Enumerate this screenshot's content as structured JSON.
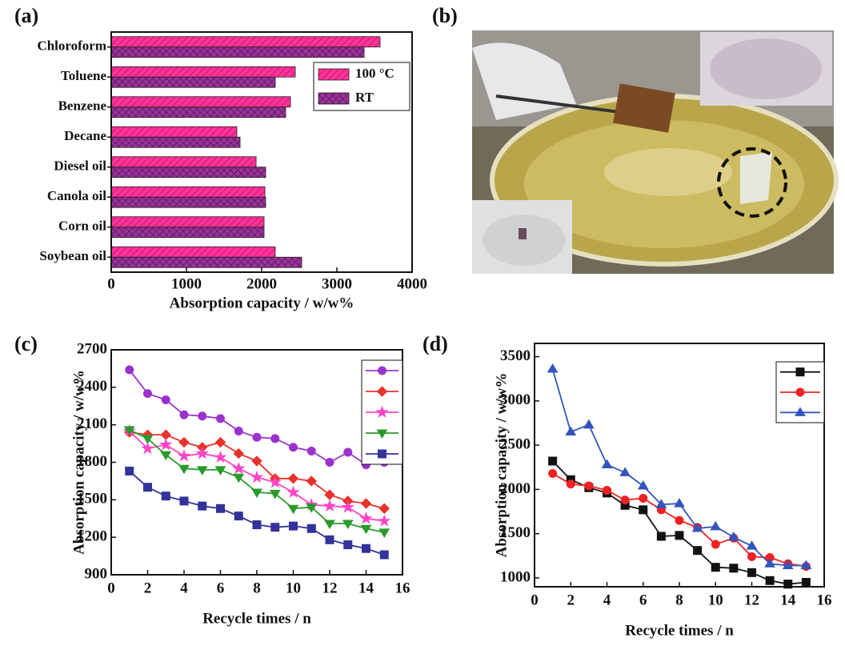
{
  "chart_data": [
    {
      "type": "barh",
      "panel_label": "(a)",
      "categories": [
        "Chloroform",
        "Toluene",
        "Benzene",
        "Decane",
        "Diesel oil",
        "Canola oil",
        "Corn oil",
        "Soybean oil"
      ],
      "series": [
        {
          "name": "100 °C",
          "color": "#ff3399",
          "values": [
            3574,
            2447,
            2383,
            1670,
            1926,
            2043,
            2032,
            2181
          ]
        },
        {
          "name": "RT",
          "color": "#993399",
          "values": [
            3362,
            2181,
            2319,
            1713,
            2053,
            2053,
            2032,
            2532
          ]
        }
      ],
      "xlabel": "Absorption capacity / w/w%",
      "xlim": [
        0,
        4000
      ],
      "xticks": [
        0,
        1000,
        2000,
        3000,
        4000
      ]
    },
    {
      "type": "line",
      "panel_label": "(c)",
      "x": [
        1,
        2,
        3,
        4,
        5,
        6,
        7,
        8,
        9,
        10,
        11,
        12,
        13,
        14,
        15
      ],
      "series": [
        {
          "color": "#9933cc",
          "marker": "circle",
          "values": [
            2540,
            2350,
            2300,
            2180,
            2170,
            2150,
            2050,
            2000,
            1990,
            1920,
            1890,
            1800,
            1880,
            1780,
            1800
          ]
        },
        {
          "color": "#e8322c",
          "marker": "diamond",
          "values": [
            2040,
            2020,
            2020,
            1960,
            1920,
            1960,
            1870,
            1810,
            1670,
            1670,
            1650,
            1540,
            1490,
            1470,
            1430
          ]
        },
        {
          "color": "#ff44c8",
          "marker": "star",
          "values": [
            2050,
            1910,
            1940,
            1850,
            1870,
            1840,
            1750,
            1680,
            1640,
            1560,
            1460,
            1450,
            1440,
            1350,
            1330
          ]
        },
        {
          "color": "#2a9a2a",
          "marker": "tri-down",
          "values": [
            2060,
            1990,
            1860,
            1750,
            1740,
            1740,
            1680,
            1560,
            1550,
            1430,
            1440,
            1310,
            1310,
            1270,
            1240
          ]
        },
        {
          "color": "#333399",
          "marker": "square",
          "values": [
            1730,
            1600,
            1530,
            1490,
            1450,
            1430,
            1370,
            1300,
            1280,
            1290,
            1270,
            1180,
            1140,
            1110,
            1060
          ]
        }
      ],
      "xlabel": "Recycle times / n",
      "ylabel": "Absorption capacity / w/w%",
      "xlim": [
        0,
        16
      ],
      "xticks": [
        0,
        2,
        4,
        6,
        8,
        10,
        12,
        14,
        16
      ],
      "ylim": [
        900,
        2700
      ],
      "yticks": [
        900,
        1200,
        1500,
        1800,
        2100,
        2400,
        2700
      ]
    },
    {
      "type": "line",
      "panel_label": "(d)",
      "x": [
        1,
        2,
        3,
        4,
        5,
        6,
        7,
        8,
        9,
        10,
        11,
        12,
        13,
        14,
        15
      ],
      "series": [
        {
          "color": "#111111",
          "marker": "square",
          "values": [
            2320,
            2110,
            2020,
            1960,
            1820,
            1770,
            1470,
            1480,
            1310,
            1120,
            1110,
            1060,
            970,
            930,
            950
          ]
        },
        {
          "color": "#ee2222",
          "marker": "circle",
          "values": [
            2180,
            2060,
            2040,
            1990,
            1880,
            1900,
            1770,
            1650,
            1570,
            1380,
            1450,
            1240,
            1230,
            1160,
            1130
          ]
        },
        {
          "color": "#3355bb",
          "marker": "tri-up",
          "values": [
            3360,
            2650,
            2730,
            2280,
            2190,
            2040,
            1830,
            1840,
            1560,
            1580,
            1460,
            1360,
            1160,
            1140,
            1140
          ]
        }
      ],
      "xlabel": "Recycle times / n",
      "ylabel": "Absorption capacity / w/w%",
      "xlim": [
        0,
        16
      ],
      "xticks": [
        0,
        2,
        4,
        6,
        8,
        10,
        12,
        14,
        16
      ],
      "ylim": [
        900,
        3650
      ],
      "yticks": [
        1000,
        1500,
        2000,
        2500,
        3000,
        3500
      ]
    }
  ],
  "photo": {
    "panel_label": "(b)"
  }
}
